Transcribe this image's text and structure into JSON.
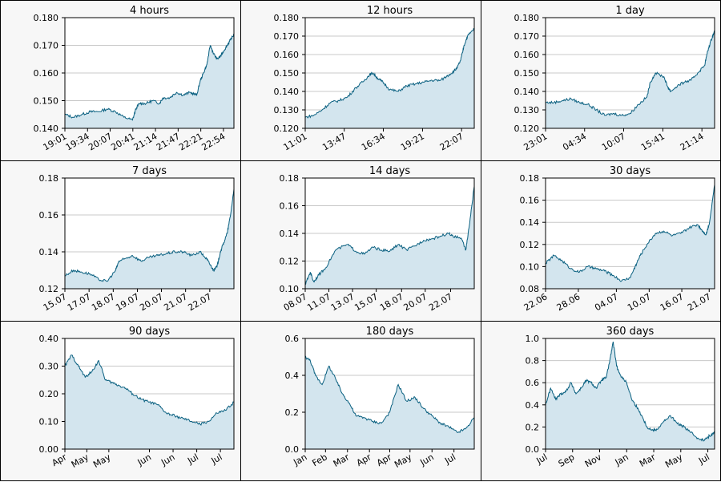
{
  "colors": {
    "line": "#0a6080",
    "fill": "#d3e5ee",
    "grid": "#c8c8c8",
    "panel_bg": "#f7f7f7",
    "plot_bg": "#ffffff"
  },
  "chart_data": [
    {
      "type": "area",
      "title": "4 hours",
      "ylim": [
        0.14,
        0.18
      ],
      "y_ticks": [
        0.14,
        0.15,
        0.16,
        0.17,
        0.18
      ],
      "y_tick_labels": [
        "0.140",
        "0.150",
        "0.160",
        "0.170",
        "0.180"
      ],
      "x_tick_labels": [
        "19:01",
        "19:34",
        "20:07",
        "20:41",
        "21:14",
        "21:47",
        "22:21",
        "22:54"
      ],
      "x_tick_pos": [
        0,
        0.134,
        0.268,
        0.402,
        0.536,
        0.67,
        0.804,
        0.938
      ],
      "series": [
        {
          "x": [
            0.0,
            0.05,
            0.1,
            0.15,
            0.2,
            0.25,
            0.3,
            0.35,
            0.4,
            0.42,
            0.44,
            0.48,
            0.52,
            0.56,
            0.58,
            0.62,
            0.66,
            0.7,
            0.74,
            0.78,
            0.8,
            0.82,
            0.84,
            0.86,
            0.88,
            0.9,
            0.92,
            0.94,
            0.96,
            0.98,
            1.0
          ],
          "values": [
            0.145,
            0.144,
            0.145,
            0.146,
            0.146,
            0.147,
            0.146,
            0.144,
            0.143,
            0.147,
            0.149,
            0.149,
            0.15,
            0.149,
            0.151,
            0.151,
            0.153,
            0.152,
            0.153,
            0.152,
            0.157,
            0.16,
            0.163,
            0.17,
            0.167,
            0.165,
            0.166,
            0.168,
            0.17,
            0.172,
            0.174
          ]
        }
      ]
    },
    {
      "type": "area",
      "title": "12 hours",
      "ylim": [
        0.12,
        0.18
      ],
      "y_ticks": [
        0.12,
        0.13,
        0.14,
        0.15,
        0.16,
        0.17,
        0.18
      ],
      "y_tick_labels": [
        "0.120",
        "0.130",
        "0.140",
        "0.150",
        "0.160",
        "0.170",
        "0.180"
      ],
      "x_tick_labels": [
        "11:01",
        "13:47",
        "16:34",
        "19:21",
        "22:07"
      ],
      "x_tick_pos": [
        0,
        0.231,
        0.462,
        0.694,
        0.925
      ],
      "series": [
        {
          "x": [
            0.0,
            0.05,
            0.1,
            0.15,
            0.2,
            0.25,
            0.3,
            0.35,
            0.38,
            0.4,
            0.43,
            0.46,
            0.5,
            0.55,
            0.6,
            0.65,
            0.7,
            0.75,
            0.8,
            0.85,
            0.88,
            0.9,
            0.92,
            0.94,
            0.96,
            1.0
          ],
          "values": [
            0.126,
            0.127,
            0.13,
            0.134,
            0.135,
            0.137,
            0.142,
            0.146,
            0.149,
            0.15,
            0.147,
            0.145,
            0.141,
            0.14,
            0.143,
            0.144,
            0.145,
            0.146,
            0.146,
            0.149,
            0.151,
            0.153,
            0.157,
            0.165,
            0.17,
            0.174
          ]
        }
      ]
    },
    {
      "type": "area",
      "title": "1 day",
      "ylim": [
        0.12,
        0.18
      ],
      "y_ticks": [
        0.12,
        0.13,
        0.14,
        0.15,
        0.16,
        0.17,
        0.18
      ],
      "y_tick_labels": [
        "0.120",
        "0.130",
        "0.140",
        "0.150",
        "0.160",
        "0.170",
        "0.180"
      ],
      "x_tick_labels": [
        "23:01",
        "04:34",
        "10:07",
        "15:41",
        "21:14"
      ],
      "x_tick_pos": [
        0,
        0.231,
        0.462,
        0.694,
        0.925
      ],
      "series": [
        {
          "x": [
            0.0,
            0.05,
            0.1,
            0.15,
            0.2,
            0.25,
            0.3,
            0.35,
            0.4,
            0.45,
            0.5,
            0.55,
            0.6,
            0.62,
            0.65,
            0.7,
            0.72,
            0.74,
            0.78,
            0.82,
            0.86,
            0.9,
            0.94,
            0.96,
            0.98,
            1.0
          ],
          "values": [
            0.134,
            0.134,
            0.135,
            0.136,
            0.134,
            0.133,
            0.13,
            0.127,
            0.128,
            0.127,
            0.128,
            0.133,
            0.137,
            0.145,
            0.15,
            0.148,
            0.143,
            0.14,
            0.143,
            0.145,
            0.146,
            0.15,
            0.154,
            0.162,
            0.168,
            0.173
          ]
        }
      ]
    },
    {
      "type": "area",
      "title": "7 days",
      "ylim": [
        0.12,
        0.18
      ],
      "y_ticks": [
        0.12,
        0.14,
        0.16,
        0.18
      ],
      "y_tick_labels": [
        "0.12",
        "0.14",
        "0.16",
        "0.18"
      ],
      "x_tick_labels": [
        "15.07",
        "17.07",
        "18.07",
        "19.07",
        "20.07",
        "21.07",
        "22.07"
      ],
      "x_tick_pos": [
        0,
        0.143,
        0.286,
        0.429,
        0.571,
        0.714,
        0.857
      ],
      "series": [
        {
          "x": [
            0.0,
            0.05,
            0.1,
            0.15,
            0.2,
            0.25,
            0.3,
            0.32,
            0.35,
            0.4,
            0.45,
            0.5,
            0.55,
            0.6,
            0.65,
            0.7,
            0.75,
            0.8,
            0.84,
            0.86,
            0.88,
            0.9,
            0.92,
            0.94,
            0.96,
            0.98,
            1.0
          ],
          "values": [
            0.127,
            0.13,
            0.129,
            0.128,
            0.125,
            0.124,
            0.13,
            0.135,
            0.136,
            0.138,
            0.135,
            0.137,
            0.138,
            0.139,
            0.14,
            0.14,
            0.138,
            0.14,
            0.136,
            0.133,
            0.13,
            0.132,
            0.14,
            0.145,
            0.15,
            0.16,
            0.174
          ]
        }
      ]
    },
    {
      "type": "area",
      "title": "14 days",
      "ylim": [
        0.1,
        0.18
      ],
      "y_ticks": [
        0.1,
        0.12,
        0.14,
        0.16,
        0.18
      ],
      "y_tick_labels": [
        "0.10",
        "0.12",
        "0.14",
        "0.16",
        "0.18"
      ],
      "x_tick_labels": [
        "08.07",
        "11.07",
        "13.07",
        "15.07",
        "18.07",
        "20.07",
        "22.07"
      ],
      "x_tick_pos": [
        0,
        0.14,
        0.28,
        0.42,
        0.57,
        0.71,
        0.86
      ],
      "series": [
        {
          "x": [
            0.0,
            0.03,
            0.05,
            0.08,
            0.12,
            0.18,
            0.25,
            0.3,
            0.35,
            0.4,
            0.45,
            0.5,
            0.55,
            0.6,
            0.65,
            0.7,
            0.75,
            0.8,
            0.85,
            0.88,
            0.9,
            0.93,
            0.95,
            0.97,
            1.0
          ],
          "values": [
            0.103,
            0.112,
            0.105,
            0.11,
            0.115,
            0.128,
            0.132,
            0.127,
            0.125,
            0.13,
            0.128,
            0.127,
            0.132,
            0.128,
            0.131,
            0.135,
            0.136,
            0.138,
            0.14,
            0.137,
            0.138,
            0.135,
            0.128,
            0.145,
            0.174
          ]
        }
      ]
    },
    {
      "type": "area",
      "title": "30 days",
      "ylim": [
        0.08,
        0.18
      ],
      "y_ticks": [
        0.08,
        0.1,
        0.12,
        0.14,
        0.16,
        0.18
      ],
      "y_tick_labels": [
        "0.08",
        "0.10",
        "0.12",
        "0.14",
        "0.16",
        "0.18"
      ],
      "x_tick_labels": [
        "22.06",
        "28.06",
        "04.07",
        "10.07",
        "16.07",
        "21.07"
      ],
      "x_tick_pos": [
        0,
        0.194,
        0.419,
        0.613,
        0.806,
        0.968
      ],
      "series": [
        {
          "x": [
            0.0,
            0.05,
            0.1,
            0.15,
            0.2,
            0.25,
            0.3,
            0.35,
            0.4,
            0.45,
            0.5,
            0.53,
            0.56,
            0.6,
            0.65,
            0.7,
            0.75,
            0.8,
            0.85,
            0.9,
            0.93,
            0.95,
            0.97,
            1.0
          ],
          "values": [
            0.103,
            0.11,
            0.105,
            0.098,
            0.095,
            0.1,
            0.098,
            0.096,
            0.092,
            0.087,
            0.09,
            0.1,
            0.11,
            0.12,
            0.13,
            0.132,
            0.128,
            0.13,
            0.135,
            0.138,
            0.132,
            0.129,
            0.14,
            0.174
          ]
        }
      ]
    },
    {
      "type": "area",
      "title": "90 days",
      "ylim": [
        0.0,
        0.4
      ],
      "y_ticks": [
        0.0,
        0.1,
        0.2,
        0.3,
        0.4
      ],
      "y_tick_labels": [
        "0.00",
        "0.10",
        "0.20",
        "0.30",
        "0.40"
      ],
      "x_tick_labels": [
        "Apr",
        "May",
        "May",
        "Jun",
        "Jun",
        "Jul",
        "Jul"
      ],
      "x_tick_pos": [
        0,
        0.13,
        0.26,
        0.5,
        0.64,
        0.78,
        0.92
      ],
      "series": [
        {
          "x": [
            0.0,
            0.04,
            0.08,
            0.12,
            0.16,
            0.2,
            0.24,
            0.28,
            0.32,
            0.36,
            0.4,
            0.45,
            0.5,
            0.55,
            0.6,
            0.65,
            0.7,
            0.75,
            0.8,
            0.85,
            0.9,
            0.95,
            1.0
          ],
          "values": [
            0.3,
            0.34,
            0.3,
            0.26,
            0.28,
            0.32,
            0.25,
            0.24,
            0.23,
            0.22,
            0.2,
            0.18,
            0.17,
            0.16,
            0.13,
            0.12,
            0.11,
            0.1,
            0.09,
            0.1,
            0.13,
            0.14,
            0.17
          ]
        }
      ]
    },
    {
      "type": "area",
      "title": "180 days",
      "ylim": [
        0.0,
        0.6
      ],
      "y_ticks": [
        0.0,
        0.2,
        0.4,
        0.6
      ],
      "y_tick_labels": [
        "0.0",
        "0.2",
        "0.4",
        "0.6"
      ],
      "x_tick_labels": [
        "Jan",
        "Feb",
        "Mar",
        "Apr",
        "Apr",
        "May",
        "Jun",
        "Jul"
      ],
      "x_tick_pos": [
        0,
        0.12,
        0.25,
        0.38,
        0.5,
        0.62,
        0.75,
        0.88
      ],
      "series": [
        {
          "x": [
            0.0,
            0.03,
            0.06,
            0.1,
            0.14,
            0.18,
            0.22,
            0.26,
            0.3,
            0.35,
            0.4,
            0.45,
            0.5,
            0.55,
            0.6,
            0.65,
            0.7,
            0.75,
            0.8,
            0.85,
            0.9,
            0.95,
            1.0
          ],
          "values": [
            0.5,
            0.48,
            0.4,
            0.35,
            0.45,
            0.38,
            0.3,
            0.25,
            0.18,
            0.17,
            0.15,
            0.14,
            0.2,
            0.35,
            0.26,
            0.28,
            0.22,
            0.18,
            0.14,
            0.12,
            0.09,
            0.11,
            0.17
          ]
        }
      ]
    },
    {
      "type": "area",
      "title": "360 days",
      "ylim": [
        0.0,
        1.0
      ],
      "y_ticks": [
        0.0,
        0.2,
        0.4,
        0.6,
        0.8,
        1.0
      ],
      "y_tick_labels": [
        "0.0",
        "0.2",
        "0.4",
        "0.6",
        "0.8",
        "1.0"
      ],
      "x_tick_labels": [
        "Jul",
        "Sep",
        "Nov",
        "Jan",
        "Mar",
        "May",
        "Jul"
      ],
      "x_tick_pos": [
        0,
        0.16,
        0.32,
        0.48,
        0.64,
        0.8,
        0.96
      ],
      "series": [
        {
          "x": [
            0.0,
            0.03,
            0.06,
            0.09,
            0.12,
            0.15,
            0.18,
            0.21,
            0.24,
            0.27,
            0.3,
            0.33,
            0.36,
            0.38,
            0.4,
            0.42,
            0.45,
            0.48,
            0.51,
            0.54,
            0.57,
            0.6,
            0.63,
            0.66,
            0.7,
            0.74,
            0.78,
            0.82,
            0.86,
            0.9,
            0.94,
            0.97,
            1.0
          ],
          "values": [
            0.4,
            0.55,
            0.45,
            0.5,
            0.52,
            0.6,
            0.5,
            0.55,
            0.62,
            0.6,
            0.55,
            0.62,
            0.65,
            0.8,
            0.97,
            0.75,
            0.65,
            0.6,
            0.45,
            0.38,
            0.3,
            0.2,
            0.17,
            0.18,
            0.25,
            0.3,
            0.23,
            0.2,
            0.15,
            0.1,
            0.08,
            0.12,
            0.15
          ]
        }
      ]
    }
  ]
}
